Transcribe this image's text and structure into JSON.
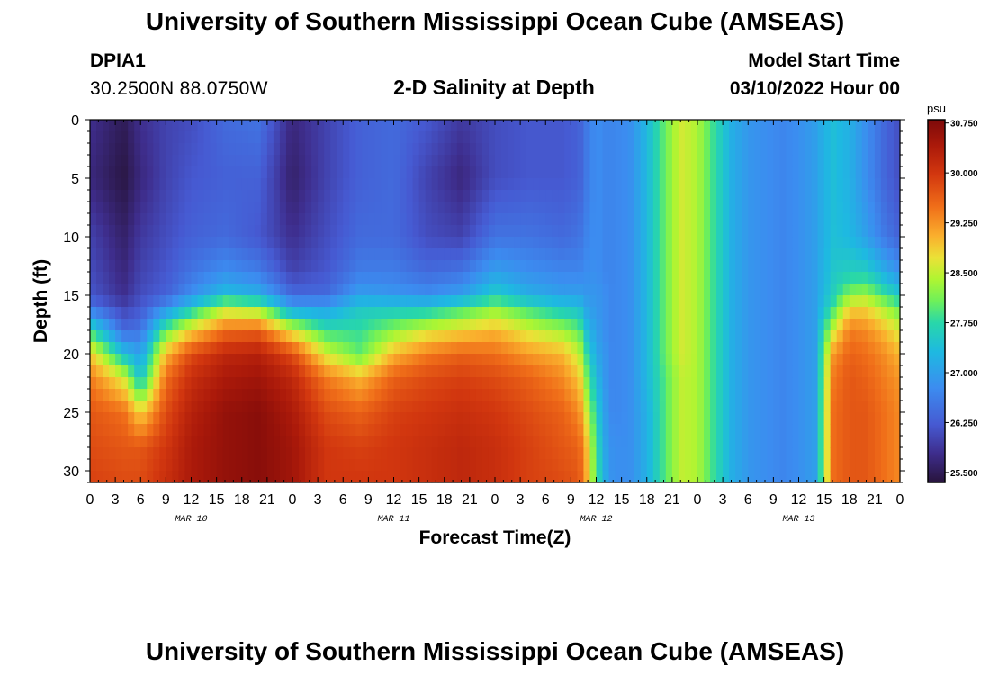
{
  "header": {
    "title": "University of Southern Mississippi Ocean Cube (AMSEAS)",
    "station": "DPIA1",
    "location": "30.2500N  88.0750W",
    "plot_title": "2-D Salinity at Depth",
    "model_start_label": "Model Start Time",
    "model_start_value": "03/10/2022 Hour 00"
  },
  "footer": {
    "title": "University of Southern Mississippi Ocean Cube (AMSEAS)"
  },
  "chart_data": {
    "type": "heatmap",
    "title": "2-D Salinity at Depth",
    "xlabel": "Forecast Time(Z)",
    "ylabel": "Depth (ft)",
    "x_ticks": [
      "0",
      "3",
      "6",
      "9",
      "12",
      "15",
      "18",
      "21",
      "0",
      "3",
      "6",
      "9",
      "12",
      "15",
      "18",
      "21",
      "0",
      "3",
      "6",
      "9",
      "12",
      "15",
      "18",
      "21",
      "0",
      "3",
      "6",
      "9",
      "12",
      "15",
      "18",
      "21",
      "0"
    ],
    "x_range_hours": [
      0,
      96
    ],
    "day_labels": [
      {
        "label": "MAR 10",
        "hour": 12
      },
      {
        "label": "MAR 11",
        "hour": 36
      },
      {
        "label": "MAR 12",
        "hour": 60
      },
      {
        "label": "MAR 13",
        "hour": 84
      }
    ],
    "y_ticks": [
      0,
      5,
      10,
      15,
      20,
      25,
      30
    ],
    "ylim": [
      0,
      31
    ],
    "y_inverted": true,
    "colorbar": {
      "unit": "psu",
      "min": 25.35,
      "max": 30.8,
      "ticks": [
        "30.750",
        "30.000",
        "29.250",
        "28.500",
        "27.750",
        "27.000",
        "26.250",
        "25.500"
      ],
      "tick_values": [
        30.75,
        30.0,
        29.25,
        28.5,
        27.75,
        27.0,
        26.25,
        25.5
      ]
    },
    "profile_hours": [
      0,
      4,
      6,
      9,
      12,
      16,
      20,
      24,
      28,
      32,
      36,
      40,
      44,
      48,
      52,
      56,
      58,
      59,
      60,
      61,
      62,
      64,
      66,
      68,
      70,
      72,
      74,
      76,
      78,
      80,
      82,
      84,
      86,
      88,
      90,
      92,
      94,
      96
    ],
    "profile_depths_ft": [
      0,
      5,
      10,
      13,
      15,
      16,
      18,
      20,
      22,
      25,
      28,
      31
    ],
    "salinity_psu": [
      [
        25.8,
        25.7,
        26.0,
        26.1,
        26.2,
        26.5,
        27.8,
        28.9,
        29.4,
        29.7,
        29.8,
        29.9
      ],
      [
        25.5,
        25.4,
        25.6,
        25.7,
        25.8,
        26.0,
        26.4,
        27.4,
        28.6,
        29.5,
        29.7,
        29.8
      ],
      [
        25.8,
        25.7,
        25.9,
        26.0,
        26.1,
        26.2,
        26.5,
        27.0,
        27.4,
        28.8,
        29.7,
        29.8
      ],
      [
        26.0,
        26.0,
        26.1,
        26.2,
        26.3,
        26.8,
        28.0,
        29.0,
        29.5,
        29.8,
        30.0,
        30.1
      ],
      [
        26.1,
        26.2,
        26.3,
        26.5,
        26.8,
        27.5,
        28.8,
        29.8,
        30.1,
        30.3,
        30.4,
        30.4
      ],
      [
        26.4,
        26.3,
        26.4,
        26.8,
        27.4,
        28.4,
        29.5,
        30.2,
        30.4,
        30.6,
        30.6,
        30.6
      ],
      [
        26.5,
        26.3,
        26.2,
        26.6,
        27.2,
        28.2,
        29.6,
        30.3,
        30.5,
        30.7,
        30.7,
        30.7
      ],
      [
        25.7,
        25.6,
        25.8,
        26.0,
        26.4,
        27.0,
        28.6,
        29.8,
        30.2,
        30.4,
        30.5,
        30.5
      ],
      [
        26.0,
        26.0,
        26.1,
        26.2,
        26.4,
        27.0,
        27.8,
        28.6,
        29.4,
        29.8,
        30.0,
        30.0
      ],
      [
        26.3,
        26.3,
        26.4,
        26.6,
        27.0,
        27.5,
        27.8,
        28.0,
        29.0,
        29.6,
        29.9,
        30.0
      ],
      [
        26.4,
        26.4,
        26.4,
        26.6,
        26.9,
        27.5,
        28.2,
        29.0,
        29.6,
        29.9,
        30.0,
        30.0
      ],
      [
        26.2,
        26.0,
        26.1,
        26.4,
        26.8,
        27.5,
        28.6,
        29.4,
        29.8,
        30.0,
        30.1,
        30.1
      ],
      [
        25.9,
        25.7,
        26.0,
        26.5,
        27.0,
        27.8,
        28.8,
        29.6,
        29.9,
        30.1,
        30.2,
        30.2
      ],
      [
        26.1,
        26.1,
        26.5,
        27.0,
        27.6,
        28.2,
        29.0,
        29.5,
        29.8,
        30.0,
        30.1,
        30.1
      ],
      [
        26.2,
        26.2,
        26.5,
        26.8,
        27.2,
        27.8,
        28.6,
        29.2,
        29.6,
        29.8,
        29.9,
        29.9
      ],
      [
        26.2,
        26.2,
        26.4,
        26.7,
        27.0,
        27.5,
        28.3,
        29.0,
        29.3,
        29.6,
        29.7,
        29.8
      ],
      [
        26.3,
        26.3,
        26.5,
        26.7,
        27.0,
        27.4,
        28.0,
        28.5,
        28.9,
        29.3,
        29.6,
        29.7
      ],
      [
        26.6,
        26.6,
        26.7,
        26.8,
        26.9,
        27.0,
        27.3,
        27.7,
        28.0,
        28.5,
        28.9,
        29.0
      ],
      [
        26.8,
        26.8,
        26.8,
        26.8,
        26.9,
        26.9,
        27.0,
        27.1,
        27.3,
        27.6,
        27.8,
        27.9
      ],
      [
        26.7,
        26.7,
        26.7,
        26.7,
        26.8,
        26.8,
        26.8,
        26.9,
        26.9,
        27.0,
        27.1,
        27.2
      ],
      [
        26.7,
        26.7,
        26.7,
        26.7,
        26.7,
        26.7,
        26.7,
        26.7,
        26.7,
        26.7,
        26.8,
        26.8
      ],
      [
        26.8,
        26.8,
        26.8,
        26.8,
        26.8,
        26.8,
        26.8,
        26.8,
        26.8,
        26.8,
        26.8,
        26.8
      ],
      [
        27.3,
        27.3,
        27.3,
        27.3,
        27.3,
        27.3,
        27.3,
        27.3,
        27.3,
        27.2,
        27.2,
        27.2
      ],
      [
        28.0,
        28.0,
        28.0,
        28.0,
        28.0,
        28.0,
        28.0,
        28.0,
        27.9,
        27.9,
        27.9,
        27.9
      ],
      [
        28.6,
        28.6,
        28.6,
        28.6,
        28.6,
        28.6,
        28.6,
        28.6,
        28.5,
        28.5,
        28.5,
        28.5
      ],
      [
        28.4,
        28.4,
        28.4,
        28.4,
        28.4,
        28.4,
        28.4,
        28.4,
        28.4,
        28.4,
        28.4,
        28.4
      ],
      [
        27.8,
        27.8,
        27.8,
        27.8,
        27.8,
        27.8,
        27.8,
        27.8,
        27.8,
        27.8,
        27.8,
        27.8
      ],
      [
        27.2,
        27.2,
        27.2,
        27.2,
        27.2,
        27.2,
        27.2,
        27.2,
        27.2,
        27.2,
        27.2,
        27.2
      ],
      [
        26.9,
        26.9,
        26.9,
        26.9,
        26.9,
        26.9,
        26.9,
        26.9,
        26.9,
        26.9,
        26.9,
        26.9
      ],
      [
        26.8,
        26.8,
        26.8,
        26.8,
        26.8,
        26.8,
        26.8,
        26.8,
        26.8,
        26.8,
        26.8,
        26.8
      ],
      [
        26.7,
        26.7,
        26.7,
        26.7,
        26.7,
        26.7,
        26.7,
        26.7,
        26.7,
        26.7,
        26.7,
        26.7
      ],
      [
        26.8,
        26.8,
        26.8,
        26.8,
        26.8,
        26.8,
        26.8,
        26.8,
        26.8,
        26.8,
        26.8,
        26.8
      ],
      [
        27.0,
        27.0,
        27.0,
        27.0,
        27.0,
        27.0,
        27.0,
        27.0,
        27.0,
        27.0,
        27.0,
        27.0
      ],
      [
        27.4,
        27.4,
        27.4,
        27.5,
        27.6,
        27.8,
        28.5,
        29.2,
        29.4,
        29.5,
        29.5,
        29.5
      ],
      [
        27.2,
        27.2,
        27.3,
        27.6,
        28.2,
        28.8,
        29.4,
        29.6,
        29.7,
        29.7,
        29.7,
        29.7
      ],
      [
        26.8,
        26.8,
        27.0,
        27.6,
        28.3,
        28.8,
        29.3,
        29.5,
        29.6,
        29.7,
        29.7,
        29.7
      ],
      [
        26.4,
        26.4,
        26.6,
        27.2,
        27.9,
        28.4,
        29.0,
        29.3,
        29.4,
        29.5,
        29.5,
        29.5
      ],
      [
        26.1,
        26.1,
        26.3,
        26.8,
        27.5,
        28.0,
        28.6,
        29.0,
        29.2,
        29.3,
        29.3,
        29.3
      ]
    ]
  }
}
